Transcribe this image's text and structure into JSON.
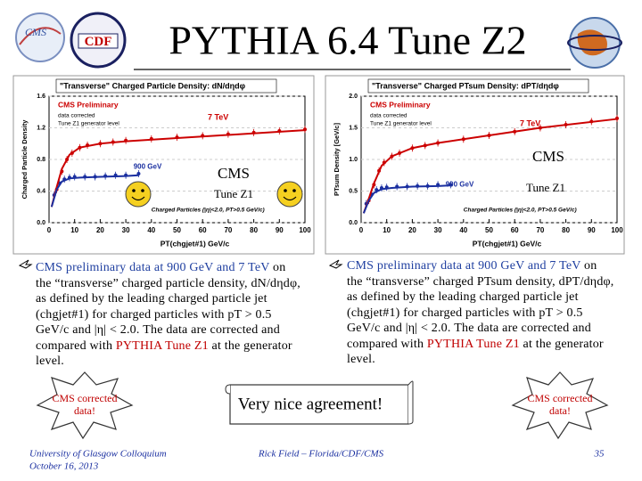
{
  "header": {
    "title": "PYTHIA 6.4 Tune Z2",
    "logos": [
      "CMS",
      "CDF"
    ]
  },
  "chart_data": [
    {
      "type": "scatter",
      "title": "\"Transverse\" Charged Particle Density: dN/dηdφ",
      "x_label": "PT(chgjet#1) GeV/c",
      "y_label": "Charged Particle Density",
      "xlim": [
        0,
        100
      ],
      "xticks": [
        0,
        10,
        20,
        30,
        40,
        50,
        60,
        70,
        80,
        90,
        100
      ],
      "ylim": [
        0,
        1.6
      ],
      "yticks": [
        {
          "value": 0,
          "label": "0.0"
        },
        {
          "value": 0.4,
          "label": "0.4"
        },
        {
          "value": 0.8,
          "label": "0.8"
        },
        {
          "value": 1.2,
          "label": "1.2"
        },
        {
          "value": 1.6,
          "label": "1.6"
        }
      ],
      "legend": [
        "CMS Preliminary",
        "data corrected",
        "Tune Z1 generator level"
      ],
      "annotations": [
        "7 TeV",
        "900 GeV",
        "Charged Particles (|η|<2.0, PT>0.5 GeV/c)"
      ],
      "overlay": [
        "CMS",
        "Tune Z1"
      ],
      "series": [
        {
          "name": "7 TeV",
          "color": "#cc0000",
          "style": "points",
          "x": [
            3,
            5,
            7,
            9,
            12,
            15,
            20,
            25,
            30,
            40,
            50,
            60,
            70,
            80,
            90,
            100
          ],
          "values": [
            0.42,
            0.65,
            0.8,
            0.88,
            0.95,
            0.98,
            1.0,
            1.02,
            1.04,
            1.06,
            1.08,
            1.1,
            1.12,
            1.14,
            1.16,
            1.18
          ]
        },
        {
          "name": "900 GeV",
          "color": "#1a2fa0",
          "style": "points",
          "x": [
            2,
            4,
            6,
            8,
            10,
            14,
            18,
            22,
            26,
            30,
            35
          ],
          "values": [
            0.35,
            0.5,
            0.55,
            0.57,
            0.58,
            0.58,
            0.58,
            0.59,
            0.6,
            0.6,
            0.62
          ]
        },
        {
          "color": "#cc0000",
          "style": "line",
          "x": [
            1,
            3,
            5,
            8,
            12,
            20,
            30,
            50,
            70,
            100
          ],
          "values": [
            0.2,
            0.45,
            0.68,
            0.86,
            0.95,
            1.0,
            1.03,
            1.07,
            1.11,
            1.17
          ]
        },
        {
          "color": "#1a2fa0",
          "style": "line",
          "x": [
            1,
            3,
            5,
            8,
            12,
            20,
            30,
            35
          ],
          "values": [
            0.2,
            0.42,
            0.52,
            0.56,
            0.57,
            0.58,
            0.59,
            0.6
          ]
        }
      ]
    },
    {
      "type": "scatter",
      "title": "\"Transverse\" Charged PTsum Density: dPT/dηdφ",
      "x_label": "PT(chgjet#1) GeV/c",
      "y_label": "PTsum Density [GeV/c]",
      "xlim": [
        0,
        100
      ],
      "xticks": [
        0,
        10,
        20,
        30,
        40,
        50,
        60,
        70,
        80,
        90,
        100
      ],
      "ylim": [
        0,
        2.0
      ],
      "yticks": [
        {
          "value": 0,
          "label": "0.0"
        },
        {
          "value": 0.5,
          "label": "0.5"
        },
        {
          "value": 1.0,
          "label": "1.0"
        },
        {
          "value": 1.5,
          "label": "1.5"
        },
        {
          "value": 2.0,
          "label": "2.0"
        }
      ],
      "legend": [
        "CMS Preliminary",
        "data corrected",
        "Tune Z1 generator level"
      ],
      "annotations": [
        "7 TeV",
        "900 GeV",
        "Charged Particles (|η|<2.0, PT>0.5 GeV/c)"
      ],
      "overlay": [
        "CMS",
        "Tune Z1"
      ],
      "series": [
        {
          "name": "7 TeV",
          "color": "#cc0000",
          "style": "points",
          "x": [
            3,
            5,
            7,
            9,
            12,
            15,
            20,
            25,
            30,
            40,
            50,
            60,
            70,
            80,
            90,
            100
          ],
          "values": [
            0.35,
            0.6,
            0.82,
            0.95,
            1.05,
            1.1,
            1.18,
            1.22,
            1.26,
            1.32,
            1.38,
            1.44,
            1.5,
            1.55,
            1.6,
            1.65
          ]
        },
        {
          "name": "900 GeV",
          "color": "#1a2fa0",
          "style": "points",
          "x": [
            2,
            4,
            6,
            8,
            10,
            14,
            18,
            22,
            26,
            30,
            35
          ],
          "values": [
            0.3,
            0.45,
            0.52,
            0.55,
            0.56,
            0.57,
            0.57,
            0.58,
            0.58,
            0.6,
            0.6
          ]
        },
        {
          "color": "#cc0000",
          "style": "line",
          "x": [
            1,
            3,
            5,
            8,
            12,
            20,
            30,
            50,
            70,
            100
          ],
          "values": [
            0.15,
            0.38,
            0.62,
            0.9,
            1.05,
            1.18,
            1.26,
            1.38,
            1.5,
            1.64
          ]
        },
        {
          "color": "#1a2fa0",
          "style": "line",
          "x": [
            1,
            3,
            5,
            8,
            12,
            20,
            30,
            35
          ],
          "values": [
            0.15,
            0.35,
            0.47,
            0.53,
            0.55,
            0.57,
            0.58,
            0.59
          ]
        }
      ]
    }
  ],
  "bullets": [
    [
      {
        "text": "CMS preliminary data at 900 GeV and 7 TeV",
        "color": "blue"
      },
      {
        "text": " on the “transverse” charged particle density, dN/dηdφ, as defined by the leading charged particle jet (chgjet#1) for charged particles with pT > 0.5 GeV/c and |η| < 2.0. The data are corrected and compared with "
      },
      {
        "text": "PYTHIA Tune Z1",
        "color": "red"
      },
      {
        "text": " at the generator level."
      }
    ],
    [
      {
        "text": "CMS preliminary data at 900 GeV and 7 TeV",
        "color": "blue"
      },
      {
        "text": " on the “transverse” charged PTsum density, dPT/dηdφ, as defined by the leading charged particle jet (chgjet#1) for charged particles with pT > 0.5 GeV/c and |η| < 2.0. The data are corrected and compared with "
      },
      {
        "text": "PYTHIA Tune Z1",
        "color": "red"
      },
      {
        "text": " at the generator level."
      }
    ]
  ],
  "callouts": [
    [
      "CMS corrected",
      "data!"
    ],
    [
      "CMS corrected",
      "data!"
    ]
  ],
  "banner": "Very nice agreement!",
  "footer": {
    "venue": "University of Glasgow Colloquium",
    "date": "October 16, 2013",
    "author": "Rick Field – Florida/CDF/CMS",
    "page": "35"
  }
}
